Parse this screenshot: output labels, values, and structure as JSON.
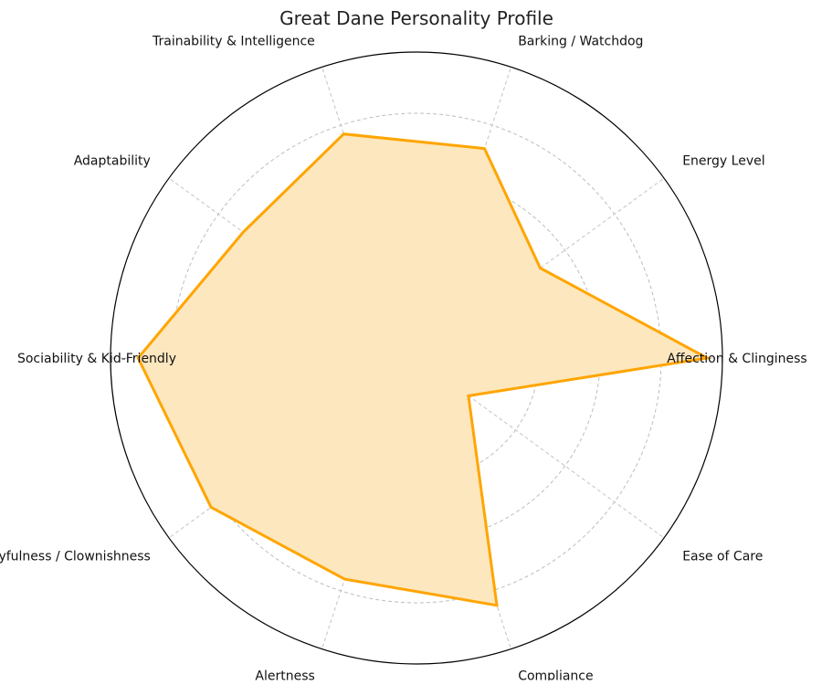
{
  "chart_data": {
    "type": "radar",
    "title": "Great Dane Personality Profile",
    "categories": [
      "Affection & Clinginess",
      "Energy Level",
      "Barking / Watchdog",
      "Trainability & Intelligence",
      "Adaptability",
      "Sociability & Kid-Friendly",
      "Playfulness / Clownishness",
      "Alertness",
      "Compliance",
      "Ease of Care"
    ],
    "series": [
      {
        "values": [
          9.5,
          5.0,
          7.2,
          7.7,
          7.0,
          9.1,
          8.3,
          7.6,
          8.5,
          2.1
        ]
      }
    ],
    "rlim": [
      0,
      10
    ],
    "rings": [
      2,
      4,
      6,
      8
    ],
    "grid": true,
    "colors": {
      "line": "#FFA500",
      "fill": "#FDE7BE"
    }
  }
}
